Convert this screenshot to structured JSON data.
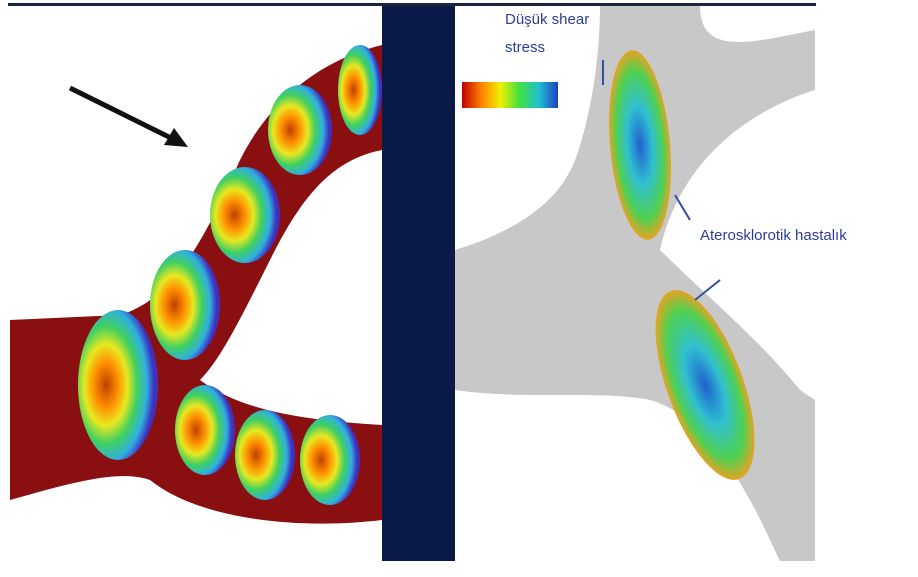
{
  "annotations": {
    "low_shear_line1": "Düşük shear",
    "low_shear_line2": "stress",
    "disease": "Aterosklorotik hastalık"
  }
}
